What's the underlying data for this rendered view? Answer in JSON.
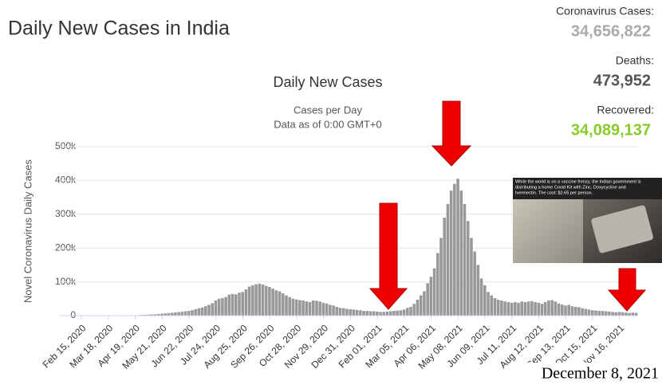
{
  "header_title": "Daily New Cases in India",
  "stats": [
    {
      "label": "Coronavirus Cases:",
      "value": "34,656,822",
      "color": "#aaaaaa"
    },
    {
      "label": "Deaths:",
      "value": "473,952",
      "color": "#555555"
    },
    {
      "label": "Recovered:",
      "value": "34,089,137",
      "color": "#8ACA2B"
    }
  ],
  "photo_caption": [
    "While the world is on a vaccine frenzy, the Indian government is",
    "distributing a home Covid Kit with Zinc, Doxycycline and",
    "Ivermectin. The cost: $2.65 per person."
  ],
  "date_note": "December 8, 2021",
  "chart_data": {
    "type": "bar",
    "title": "Daily New Cases",
    "subtitle": [
      "Cases per Day",
      "Data as of 0:00 GMT+0"
    ],
    "y_label": "Novel Coronavirus Daily Cases",
    "color": "#999999",
    "grid": true,
    "ylim": [
      0,
      500000
    ],
    "yticks": [
      0,
      {
        "value": 100000,
        "label": "100k"
      },
      {
        "value": 200000,
        "label": "200k"
      },
      {
        "value": 300000,
        "label": "300k"
      },
      {
        "value": 400000,
        "label": "400k"
      },
      {
        "value": 500000,
        "label": "500k"
      }
    ],
    "categories": [
      "Feb 15, 2020",
      null,
      null,
      null,
      null,
      null,
      null,
      null,
      "Mar 18, 2020",
      null,
      null,
      null,
      null,
      null,
      null,
      null,
      "Apr 19, 2020",
      null,
      null,
      null,
      null,
      null,
      null,
      null,
      "May 21, 2020",
      null,
      null,
      null,
      null,
      null,
      null,
      null,
      "Jun 22, 2020",
      null,
      null,
      null,
      null,
      null,
      null,
      null,
      "Jul 24, 2020",
      null,
      null,
      null,
      null,
      null,
      null,
      null,
      "Aug 25, 2020",
      null,
      null,
      null,
      null,
      null,
      null,
      null,
      "Sep 26, 2020",
      null,
      null,
      null,
      null,
      null,
      null,
      null,
      "Oct 28, 2020",
      null,
      null,
      null,
      null,
      null,
      null,
      null,
      "Nov 29, 2020",
      null,
      null,
      null,
      null,
      null,
      null,
      null,
      "Dec 31, 2020",
      null,
      null,
      null,
      null,
      null,
      null,
      null,
      "Feb 01, 2021",
      null,
      null,
      null,
      null,
      null,
      null,
      null,
      "Mar 05, 2021",
      null,
      null,
      null,
      null,
      null,
      null,
      null,
      "Apr 06, 2021",
      null,
      null,
      null,
      null,
      null,
      null,
      null,
      "May 08, 2021",
      null,
      null,
      null,
      null,
      null,
      null,
      null,
      "Jun 09, 2021",
      null,
      null,
      null,
      null,
      null,
      null,
      null,
      "Jul 11, 2021",
      null,
      null,
      null,
      null,
      null,
      null,
      null,
      "Aug 12, 2021",
      null,
      null,
      null,
      null,
      null,
      null,
      null,
      "Sep 13, 2021",
      null,
      null,
      null,
      null,
      null,
      null,
      null,
      "Oct 15, 2021",
      null,
      null,
      null,
      null,
      null,
      null,
      null,
      "Nov 16, 2021",
      null,
      null,
      null,
      null,
      null
    ],
    "values": [
      0,
      0,
      0,
      0,
      0,
      0,
      0,
      0,
      20,
      100,
      100,
      200,
      500,
      600,
      900,
      1000,
      1300,
      1600,
      1800,
      2500,
      3000,
      3500,
      3800,
      4800,
      5600,
      6500,
      7500,
      8500,
      9500,
      10500,
      11500,
      13000,
      14000,
      16000,
      19000,
      22000,
      24000,
      28000,
      32000,
      37000,
      45000,
      50000,
      52000,
      55000,
      62000,
      64000,
      63000,
      68000,
      70000,
      78000,
      86000,
      90000,
      93000,
      95000,
      92000,
      88000,
      85000,
      80000,
      75000,
      72000,
      66000,
      60000,
      55000,
      50000,
      48000,
      46000,
      45000,
      42000,
      40000,
      45000,
      44000,
      42000,
      38000,
      36000,
      32000,
      30000,
      26000,
      23000,
      22000,
      20000,
      19000,
      18000,
      17000,
      16000,
      14000,
      14000,
      13000,
      13000,
      12000,
      11000,
      11000,
      12000,
      13000,
      14000,
      15000,
      16000,
      18000,
      23000,
      26000,
      35000,
      47000,
      60000,
      72000,
      96000,
      115000,
      140000,
      185000,
      230000,
      290000,
      330000,
      370000,
      390000,
      405000,
      370000,
      330000,
      280000,
      230000,
      190000,
      150000,
      110000,
      90000,
      70000,
      60000,
      52000,
      47000,
      45000,
      42000,
      40000,
      38000,
      40000,
      38000,
      42000,
      40000,
      42000,
      43000,
      40000,
      38000,
      35000,
      40000,
      45000,
      46000,
      42000,
      36000,
      33000,
      30000,
      32000,
      28000,
      26000,
      25000,
      22000,
      20000,
      18000,
      16000,
      15000,
      14000,
      14000,
      13000,
      12000,
      11000,
      10000,
      11000,
      10000,
      9000,
      8000,
      9000,
      8000
    ]
  }
}
